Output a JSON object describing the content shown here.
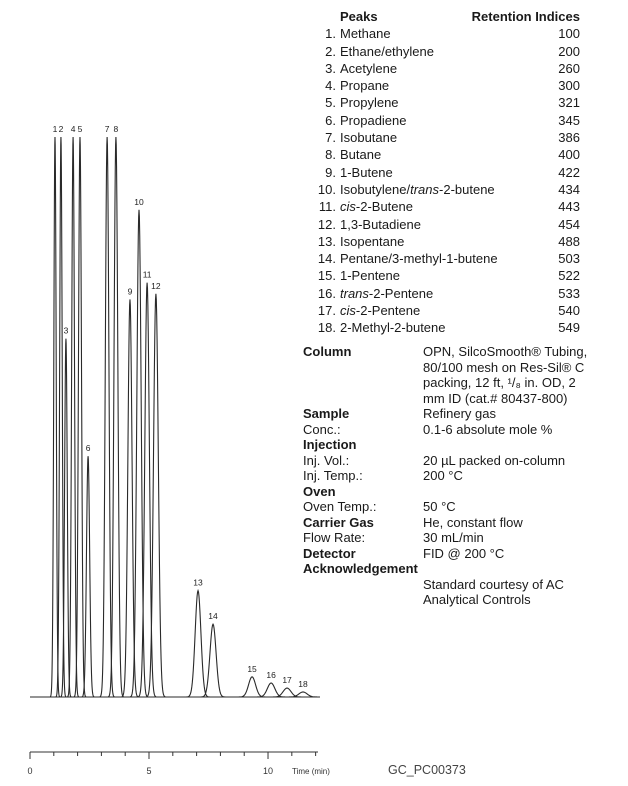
{
  "chart_data": {
    "type": "chromatogram",
    "peak_labels": [
      "1",
      "2",
      "3",
      "4",
      "5",
      "6",
      "7",
      "8",
      "9",
      "10",
      "11",
      "12",
      "13",
      "14",
      "15",
      "16",
      "17",
      "18"
    ],
    "x": [
      1.05,
      1.3,
      1.51,
      1.81,
      2.1,
      2.44,
      3.24,
      3.61,
      4.2,
      4.58,
      4.92,
      5.29,
      7.06,
      7.69,
      9.33,
      10.13,
      10.8,
      11.47
    ],
    "values": [
      100,
      100,
      64,
      100,
      100,
      43,
      100,
      100,
      71,
      87,
      74,
      72,
      19,
      13,
      3.6,
      2.5,
      1.6,
      0.9
    ],
    "xlim": [
      0,
      12.1
    ],
    "ylim": [
      0,
      100
    ],
    "xticks": [
      0,
      5,
      10
    ],
    "minor_xticks": [
      1,
      2,
      3,
      4,
      6,
      7,
      8,
      9,
      11,
      12
    ],
    "xlabel": "Time (min)",
    "color": "#2a2a2a"
  },
  "figure_id": "GC_PC00373",
  "peak_table": {
    "headers": [
      "Peaks",
      "Retention Indices"
    ],
    "rows": [
      {
        "no": "1.",
        "name": [
          "Methane"
        ],
        "index": 100
      },
      {
        "no": "2.",
        "name": [
          "Ethane/ethylene"
        ],
        "index": 200
      },
      {
        "no": "3.",
        "name": [
          "Acetylene"
        ],
        "index": 260
      },
      {
        "no": "4.",
        "name": [
          "Propane"
        ],
        "index": 300
      },
      {
        "no": "5.",
        "name": [
          "Propylene"
        ],
        "index": 321
      },
      {
        "no": "6.",
        "name": [
          "Propadiene"
        ],
        "index": 345
      },
      {
        "no": "7.",
        "name": [
          "Isobutane"
        ],
        "index": 386
      },
      {
        "no": "8.",
        "name": [
          "Butane"
        ],
        "index": 400
      },
      {
        "no": "9.",
        "name": [
          "1-Butene"
        ],
        "index": 422
      },
      {
        "no": "10.",
        "name": [
          "Isobutylene/",
          {
            "text": "trans",
            "italic": true
          },
          "-2-butene"
        ],
        "index": 434
      },
      {
        "no": "11.",
        "name": [
          {
            "text": "cis",
            "italic": true
          },
          "-2-Butene"
        ],
        "index": 443
      },
      {
        "no": "12.",
        "name": [
          "1,3-Butadiene"
        ],
        "index": 454
      },
      {
        "no": "13.",
        "name": [
          "Isopentane"
        ],
        "index": 488
      },
      {
        "no": "14.",
        "name": [
          "Pentane/3-methyl-1-butene"
        ],
        "index": 503
      },
      {
        "no": "15.",
        "name": [
          "1-Pentene"
        ],
        "index": 522
      },
      {
        "no": "16.",
        "name": [
          {
            "text": "trans",
            "italic": true
          },
          "-2-Pentene"
        ],
        "index": 533
      },
      {
        "no": "17.",
        "name": [
          {
            "text": "cis",
            "italic": true
          },
          "-2-Pentene"
        ],
        "index": 540
      },
      {
        "no": "18.",
        "name": [
          "2-Methyl-2-butene"
        ],
        "index": 549
      }
    ]
  },
  "conditions": [
    {
      "label": "Column",
      "bold": true,
      "value": "OPN, SilcoSmooth® Tubing, 80/100 mesh on Res-Sil® C packing, 12 ft, ¹/₈ in. OD, 2 mm ID (cat.# 80437-800)"
    },
    {
      "label": "Sample",
      "bold": true,
      "value": "Refinery gas"
    },
    {
      "label": "Conc.:",
      "value": "0.1-6 absolute mole %"
    },
    {
      "label": "Injection",
      "bold": true
    },
    {
      "label": "Inj. Vol.:",
      "value": "20 µL packed on-column"
    },
    {
      "label": "Inj. Temp.:",
      "value": "200 °C"
    },
    {
      "label": "Oven",
      "bold": true
    },
    {
      "label": "Oven Temp.:",
      "value": "50 °C"
    },
    {
      "label": "Carrier Gas",
      "bold": true,
      "value": "He, constant flow"
    },
    {
      "label": "Flow Rate:",
      "value": "30 mL/min"
    },
    {
      "label": "Detector",
      "bold": true,
      "value": "FID @ 200 °C"
    },
    {
      "label": "Acknowledgement",
      "bold": true
    },
    {
      "value": "Standard courtesy of AC Analytical Controls"
    }
  ]
}
